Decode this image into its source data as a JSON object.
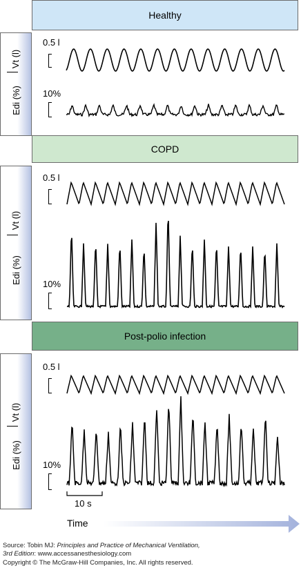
{
  "panels": [
    {
      "title": "Healthy",
      "header_color": "#cfe6f7",
      "vt_label": "Vt (l)",
      "edi_label": "Edi (%)",
      "vt_scale": "0.5 l",
      "edi_scale": "10%"
    },
    {
      "title": "COPD",
      "header_color": "#cfe8cf",
      "vt_label": "Vt (l)",
      "edi_label": "Edi (%)",
      "vt_scale": "0.5 l",
      "edi_scale": "10%"
    },
    {
      "title": "Post-polio infection",
      "header_color": "#76b089",
      "vt_label": "Vt (l)",
      "edi_label": "Edi (%)",
      "vt_scale": "0.5 l",
      "edi_scale": "10%"
    }
  ],
  "time_scale": "10 s",
  "time_label": "Time",
  "source": {
    "prefix": "Source: Tobin MJ: ",
    "book_title": "Principles and Practice of Mechanical Ventilation,",
    "edition": "3rd Edition",
    "url_suffix": ": www.accessanesthesiology.com",
    "copyright": "Copyright © The McGraw-Hill Companies, Inc. All rights reserved."
  },
  "colors": {
    "arrow": "#a3b2dc",
    "border": "#6b6b6b"
  }
}
